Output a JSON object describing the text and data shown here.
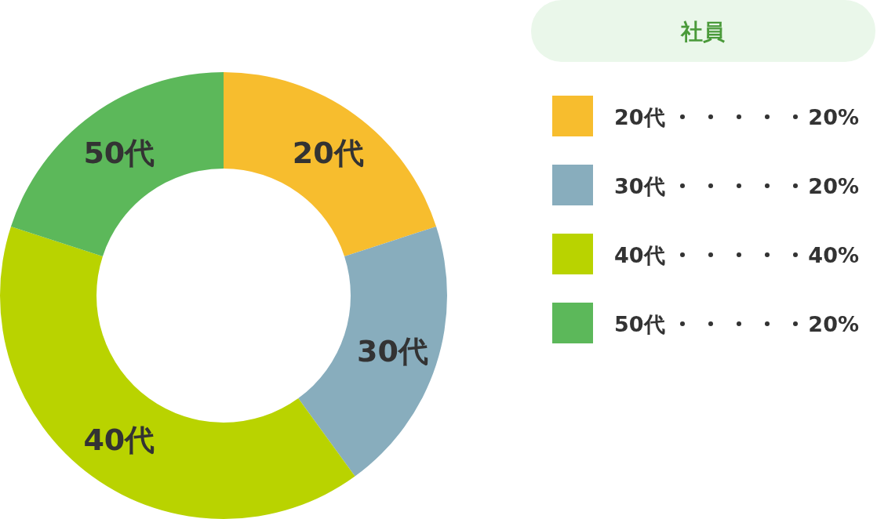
{
  "chart_data": {
    "type": "donut",
    "title": "社員",
    "categories": [
      "20代",
      "30代",
      "40代",
      "50代"
    ],
    "values": [
      20,
      20,
      40,
      20
    ],
    "colors": [
      "#f7bd2e",
      "#88adbd",
      "#b9d300",
      "#5cb85a"
    ],
    "value_labels": [
      "20%",
      "20%",
      "40%",
      "20%"
    ],
    "legend": "right"
  }
}
